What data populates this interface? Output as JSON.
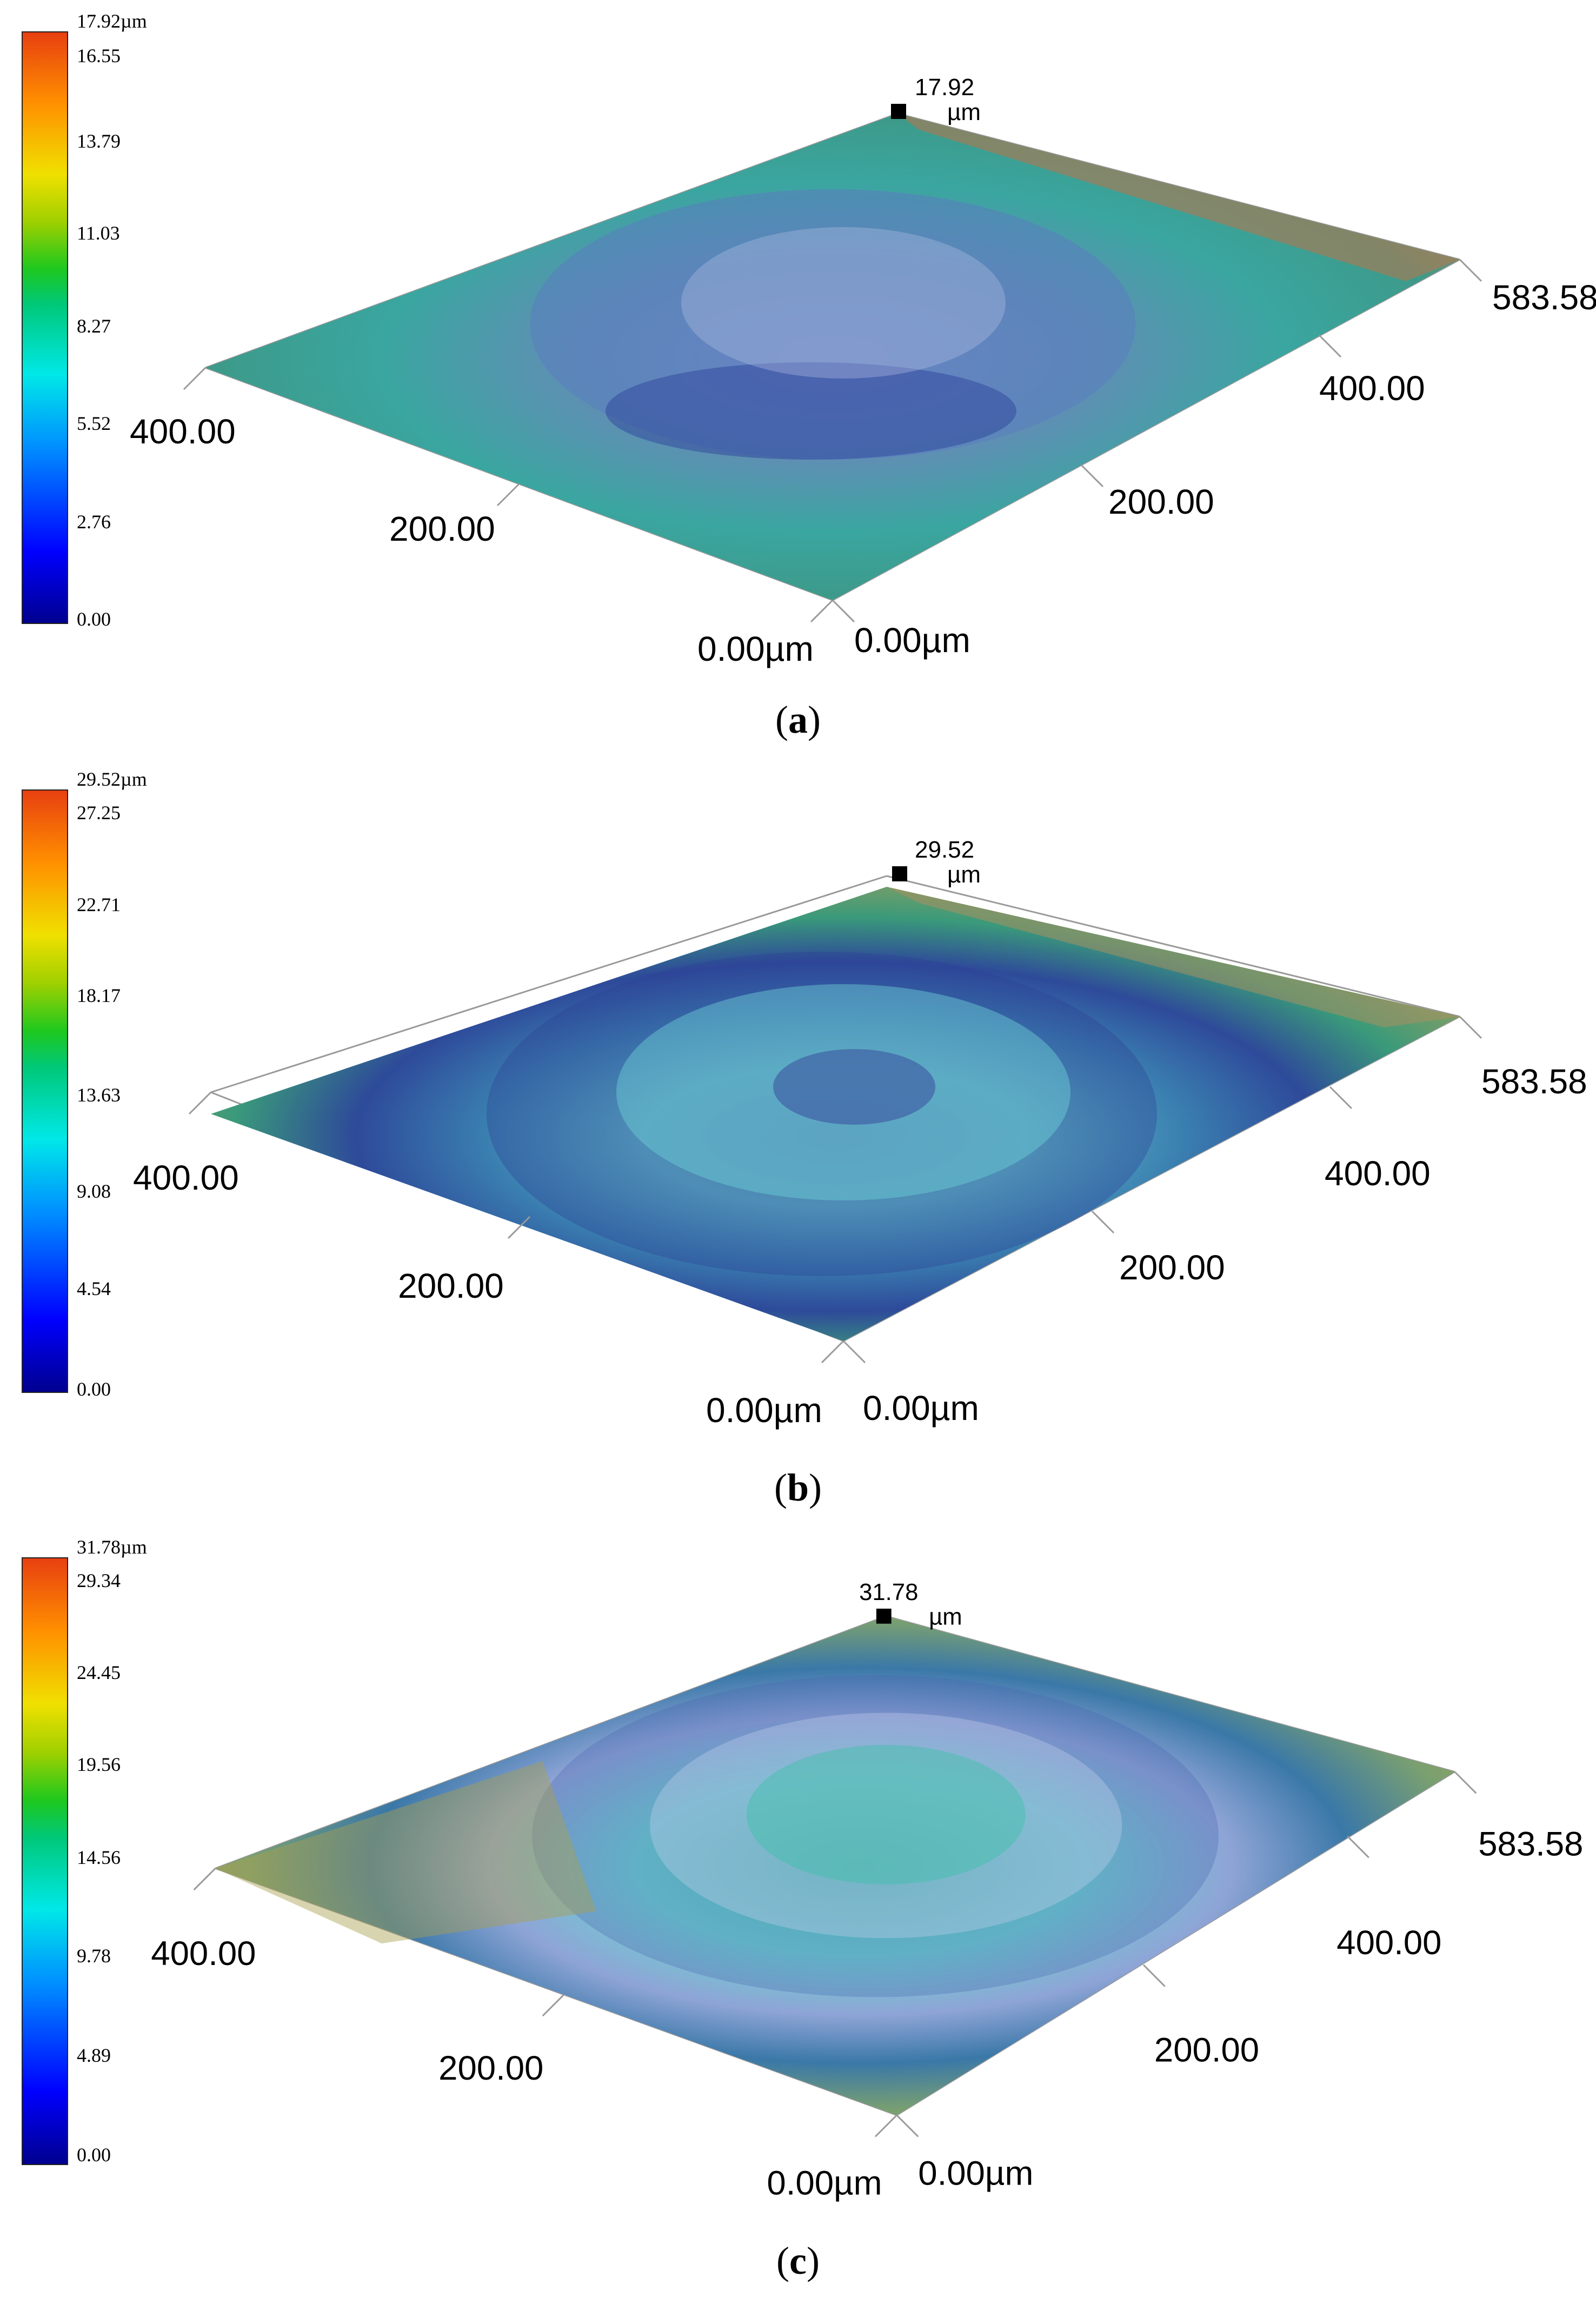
{
  "figure": {
    "panels": [
      {
        "caption_letter": "a",
        "colorbar_ticks": [
          "17.92µm",
          "16.55",
          "13.79",
          "11.03",
          "8.27",
          "5.52",
          "2.76",
          "0.00"
        ],
        "peak_value": "17.92",
        "peak_unit": "µm",
        "axis_labels_left": [
          "400.00",
          "200.00",
          "0.00µm"
        ],
        "axis_labels_right": [
          "583.58",
          "400.00",
          "200.00",
          "0.00µm"
        ]
      },
      {
        "caption_letter": "b",
        "colorbar_ticks": [
          "29.52µm",
          "27.25",
          "22.71",
          "18.17",
          "13.63",
          "9.08",
          "4.54",
          "0.00"
        ],
        "peak_value": "29.52",
        "peak_unit": "µm",
        "axis_labels_left": [
          "400.00",
          "200.00",
          "0.00µm"
        ],
        "axis_labels_right": [
          "583.58",
          "400.00",
          "200.00",
          "0.00µm"
        ]
      },
      {
        "caption_letter": "c",
        "colorbar_ticks": [
          "31.78µm",
          "29.34",
          "24.45",
          "19.56",
          "14.56",
          "9.78",
          "4.89",
          "0.00"
        ],
        "peak_value": "31.78",
        "peak_unit": "µm",
        "axis_labels_left": [
          "400.00",
          "200.00",
          "0.00µm"
        ],
        "axis_labels_right": [
          "583.58",
          "400.00",
          "200.00",
          "0.00µm"
        ]
      }
    ]
  },
  "chart_data": [
    {
      "type": "heatmap",
      "colorscale": [
        "#00008f",
        "#0000ff",
        "#0090ff",
        "#00e8e8",
        "#1ec81e",
        "#f0e000",
        "#ff9000",
        "#e84010"
      ],
      "z_range": [
        0.0,
        17.92
      ],
      "z_ticks": [
        17.92,
        16.55,
        13.79,
        11.03,
        8.27,
        5.52,
        2.76,
        0.0
      ],
      "x_ticks": [
        0.0,
        200.0,
        400.0
      ],
      "y_ticks": [
        0.0,
        200.0,
        400.0,
        583.58
      ],
      "y_max": 583.58,
      "z_max": 17.92
    },
    {
      "type": "heatmap",
      "colorscale": [
        "#00008f",
        "#0000ff",
        "#0090ff",
        "#00e8e8",
        "#1ec81e",
        "#f0e000",
        "#ff9000",
        "#e84010"
      ],
      "z_range": [
        0.0,
        29.52
      ],
      "z_ticks": [
        29.52,
        27.25,
        22.71,
        18.17,
        13.63,
        9.08,
        4.54,
        0.0
      ],
      "x_ticks": [
        0.0,
        200.0,
        400.0
      ],
      "y_ticks": [
        0.0,
        200.0,
        400.0,
        583.58
      ],
      "y_max": 583.58,
      "z_max": 29.52
    },
    {
      "type": "heatmap",
      "colorscale": [
        "#00008f",
        "#0000ff",
        "#0090ff",
        "#00e8e8",
        "#1ec81e",
        "#f0e000",
        "#ff9000",
        "#e84010"
      ],
      "z_range": [
        0.0,
        31.78
      ],
      "z_ticks": [
        31.78,
        29.34,
        24.45,
        19.56,
        14.56,
        9.78,
        4.89,
        0.0
      ],
      "x_ticks": [
        0.0,
        200.0,
        400.0
      ],
      "y_ticks": [
        0.0,
        200.0,
        400.0,
        583.58
      ],
      "y_max": 583.58,
      "z_max": 31.78
    }
  ]
}
